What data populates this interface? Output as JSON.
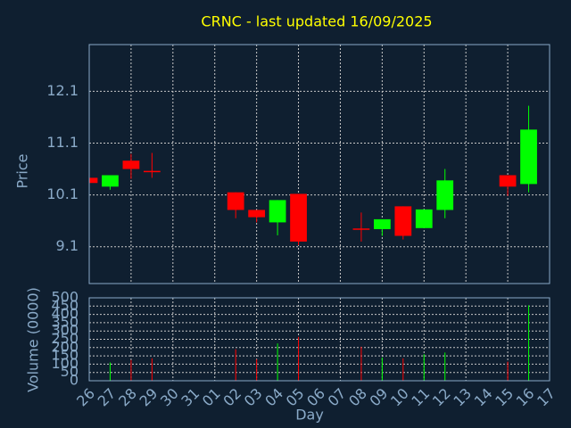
{
  "chart_data": {
    "type": "candlestick",
    "title": "CRNC - last updated 16/09/2025",
    "y_label": "Price",
    "volume_label": "Volume (0000)",
    "x_label": "Day",
    "categories": [
      "26",
      "27",
      "28",
      "29",
      "30",
      "31",
      "01",
      "02",
      "03",
      "04",
      "05",
      "06",
      "07",
      "08",
      "09",
      "10",
      "11",
      "12",
      "13",
      "14",
      "15",
      "16",
      "17"
    ],
    "open": [
      10.43,
      10.26,
      10.76,
      10.55,
      null,
      null,
      null,
      10.15,
      9.81,
      9.57,
      10.12,
      null,
      null,
      9.44,
      9.44,
      9.88,
      9.46,
      9.81,
      null,
      null,
      10.48,
      10.31,
      null
    ],
    "high": [
      10.43,
      10.48,
      10.89,
      10.91,
      null,
      null,
      null,
      10.15,
      9.81,
      10.0,
      10.12,
      null,
      null,
      9.76,
      9.63,
      9.88,
      9.82,
      10.6,
      null,
      null,
      10.48,
      11.82,
      null
    ],
    "low": [
      10.33,
      10.2,
      10.41,
      10.43,
      null,
      null,
      null,
      9.65,
      9.57,
      9.32,
      9.13,
      null,
      null,
      9.2,
      9.31,
      9.24,
      9.46,
      9.65,
      null,
      null,
      10.08,
      10.15,
      null
    ],
    "close": [
      10.33,
      10.48,
      10.6,
      10.55,
      null,
      null,
      null,
      9.81,
      9.67,
      10.0,
      9.2,
      null,
      null,
      9.44,
      9.63,
      9.31,
      9.82,
      10.38,
      null,
      null,
      10.26,
      11.36,
      null
    ],
    "volume": [
      null,
      110,
      125,
      135,
      null,
      null,
      null,
      190,
      130,
      225,
      265,
      null,
      null,
      205,
      140,
      135,
      160,
      170,
      null,
      null,
      115,
      455,
      null
    ],
    "up_color": "#00ff00",
    "down_color": "#ff0000",
    "ylim": [
      8.39,
      13.0
    ],
    "yticks": [
      9.1,
      10.1,
      11.1,
      12.1
    ],
    "volume_lim": [
      0,
      500
    ],
    "volume_ticks": [
      0,
      50,
      100,
      150,
      200,
      250,
      300,
      350,
      400,
      450,
      500
    ],
    "grid": true
  }
}
